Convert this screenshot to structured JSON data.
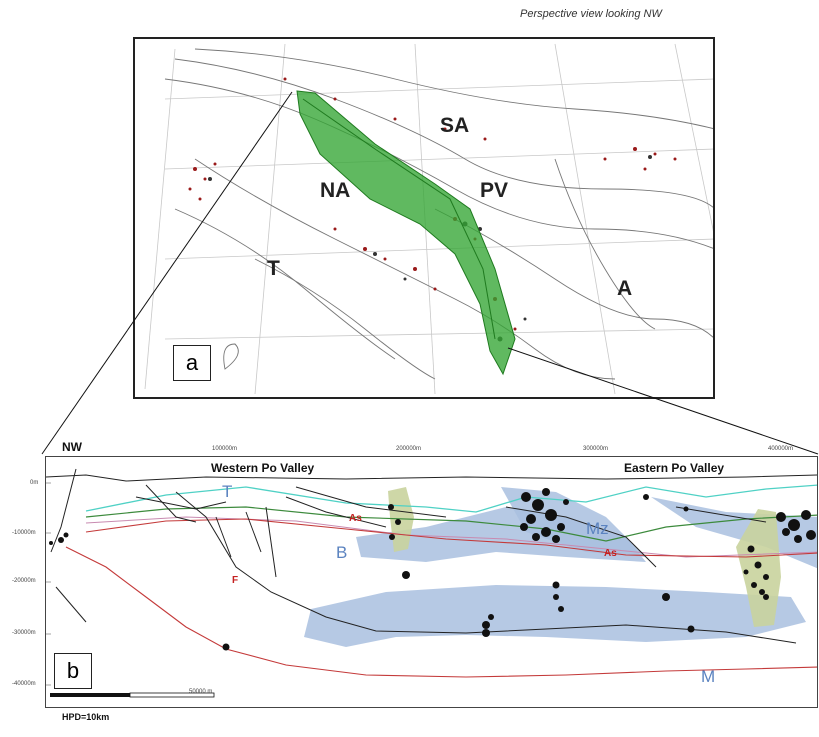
{
  "caption": "Perspective view looking NW",
  "panel_a": {
    "tag": "a",
    "labels": {
      "sa": "SA",
      "na": "NA",
      "pv": "PV",
      "t": "T",
      "a": "A"
    }
  },
  "panel_b": {
    "tag": "b",
    "nw": "NW",
    "west_title": "Western Po Valley",
    "east_title": "Eastern Po Valley",
    "x_ticks": [
      "100000m",
      "200000m",
      "300000m",
      "400000m"
    ],
    "y_ticks": [
      "0m",
      "-10000m",
      "-20000m",
      "-30000m",
      "-40000m"
    ],
    "scale_label": "50000 m",
    "labels": {
      "t": "T",
      "b": "B",
      "mz": "Mz",
      "m": "M",
      "as1": "As",
      "as2": "As",
      "f": "F"
    }
  },
  "footer": "HPD=10km",
  "colors": {
    "fault_zone_green": "#33a533",
    "layer_blue": "#a9bfdf",
    "volume_khaki": "#c9d39d",
    "moho_red": "#c43a3a",
    "top_cyan": "#4fd1c5"
  }
}
